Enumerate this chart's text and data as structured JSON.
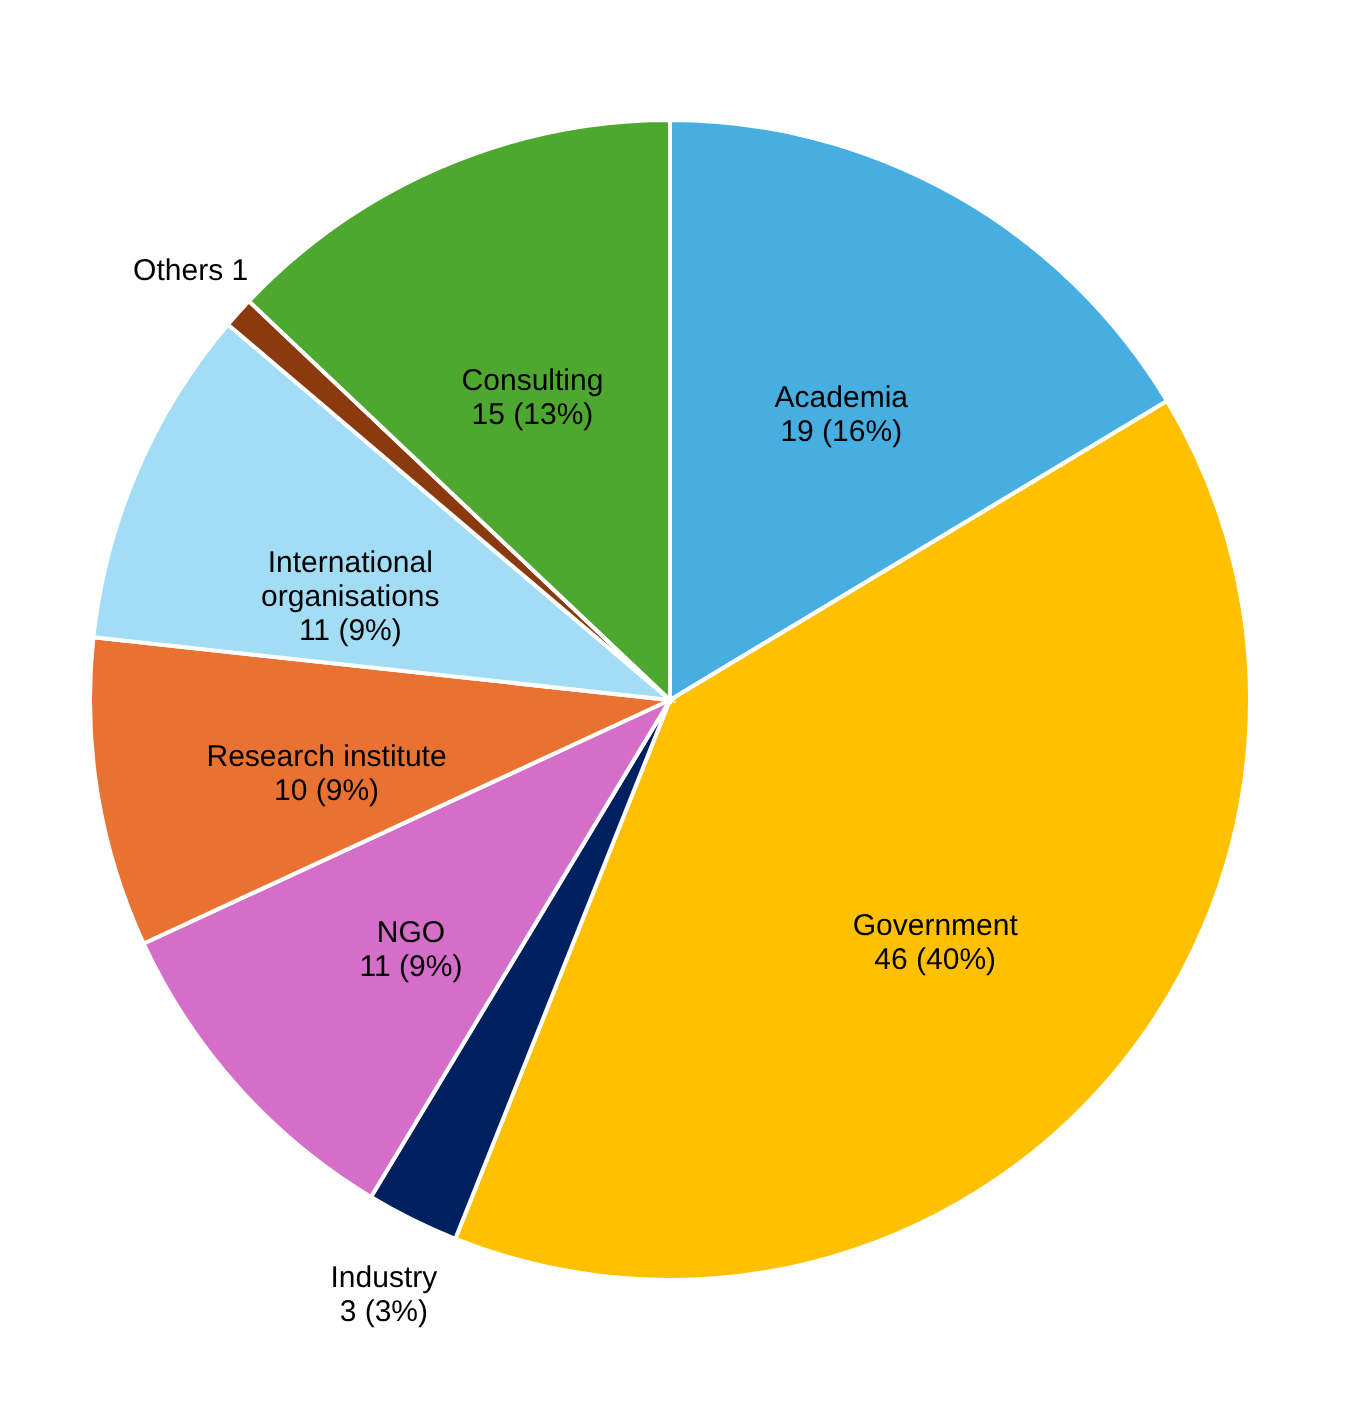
{
  "chart_data": {
    "type": "pie",
    "categories": [
      "Academia",
      "Government",
      "Industry",
      "NGO",
      "Research institute",
      "International organisations",
      "Others",
      "Consulting"
    ],
    "values": [
      19,
      46,
      3,
      11,
      10,
      11,
      1,
      15
    ],
    "value_labels": [
      "19 (16%)",
      "46 (40%)",
      "3 (3%)",
      "11 (9%)",
      "10 (9%)",
      "11 (9%)",
      "1",
      "15 (13%)"
    ],
    "colors": [
      "#46aee0",
      "#ffc000",
      "#002060",
      "#d46ec8",
      "#e97132",
      "#a3dcf5",
      "#8b3a0f",
      "#4ea72e"
    ],
    "legend": false
  }
}
